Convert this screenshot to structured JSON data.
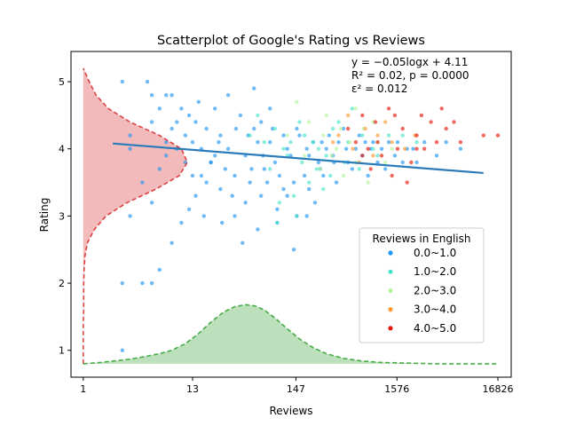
{
  "chart_data": {
    "type": "scatter",
    "title": "Scatterplot of Google's Rating vs Reviews",
    "xlabel": "Reviews",
    "ylabel": "Rating",
    "x_scale": "log",
    "xlim": [
      0.75,
      23000
    ],
    "ylim": [
      0.6,
      5.45
    ],
    "x_ticks": [
      1,
      13,
      147,
      1576,
      16826
    ],
    "x_tick_labels": [
      "1",
      "13",
      "147",
      "1576",
      "16826"
    ],
    "y_ticks": [
      1,
      2,
      3,
      4,
      5
    ],
    "y_tick_labels": [
      "1",
      "2",
      "3",
      "4",
      "5"
    ],
    "grid": false,
    "annotation": {
      "line1": "y = −0.05logx + 4.11",
      "line2": "R² = 0.02, p = 0.0000",
      "line3": "ε² = 0.012",
      "placement": "top-right"
    },
    "fit_line": {
      "label": "y = -0.05log x + 4.11",
      "x": [
        2,
        12000
      ],
      "y": [
        4.08,
        3.64
      ],
      "color": "#2b7bba"
    },
    "legend": {
      "title": "Reviews in English",
      "placement": "center-right",
      "entries": [
        {
          "label": "0.0~1.0",
          "color": "#2196f3"
        },
        {
          "label": "1.0~2.0",
          "color": "#4de3c8"
        },
        {
          "label": "2.0~3.0",
          "color": "#b7f59a"
        },
        {
          "label": "3.0~4.0",
          "color": "#ff9933"
        },
        {
          "label": "4.0~5.0",
          "color": "#e6190a"
        }
      ]
    },
    "rating_density": {
      "color": "#d62728",
      "rating": [
        0.8,
        1.0,
        1.2,
        1.4,
        1.6,
        1.8,
        2.0,
        2.2,
        2.4,
        2.6,
        2.8,
        3.0,
        3.2,
        3.4,
        3.6,
        3.8,
        4.0,
        4.2,
        4.4,
        4.6,
        4.8,
        5.0,
        5.2
      ],
      "reviews": [
        1.0,
        1.0,
        1.0,
        1.0,
        1.01,
        1.01,
        1.01,
        1.02,
        1.04,
        1.1,
        1.3,
        1.7,
        2.8,
        5.5,
        9.5,
        11.5,
        10.0,
        6.0,
        3.0,
        1.8,
        1.35,
        1.15,
        1.0
      ]
    },
    "reviews_density": {
      "color": "#2ca02c",
      "reviews": [
        1,
        1.5,
        2,
        3,
        4,
        6,
        8,
        11,
        15,
        20,
        27,
        35,
        45,
        57,
        70,
        90,
        120,
        160,
        220,
        300,
        450,
        700,
        1100,
        2000,
        4000,
        8000,
        16826
      ],
      "rating": [
        0.8,
        0.82,
        0.84,
        0.87,
        0.9,
        0.95,
        1.0,
        1.1,
        1.25,
        1.42,
        1.57,
        1.65,
        1.68,
        1.66,
        1.6,
        1.48,
        1.32,
        1.17,
        1.04,
        0.95,
        0.88,
        0.84,
        0.82,
        0.81,
        0.8,
        0.8,
        0.8
      ]
    },
    "series": [
      {
        "name": "0.0~1.0",
        "color": "#2196f3",
        "points": [
          [
            2.5,
            1.0
          ],
          [
            2.5,
            5.0
          ],
          [
            4.5,
            5.0
          ],
          [
            5,
            4.8
          ],
          [
            7,
            4.8
          ],
          [
            8,
            4.8
          ],
          [
            6,
            4.6
          ],
          [
            10,
            4.6
          ],
          [
            12,
            4.5
          ],
          [
            5,
            4.4
          ],
          [
            8,
            4.3
          ],
          [
            14,
            4.4
          ],
          [
            18,
            4.3
          ],
          [
            25,
            4.2
          ],
          [
            40,
            4.5
          ],
          [
            55,
            4.3
          ],
          [
            80,
            4.1
          ],
          [
            120,
            4.0
          ],
          [
            160,
            4.2
          ],
          [
            220,
            4.1
          ],
          [
            300,
            4.0
          ],
          [
            400,
            4.1
          ],
          [
            600,
            4.0
          ],
          [
            900,
            4.1
          ],
          [
            1300,
            4.1
          ],
          [
            2000,
            4.0
          ],
          [
            3000,
            4.1
          ],
          [
            5000,
            4.1
          ],
          [
            30,
            4.0
          ],
          [
            45,
            3.9
          ],
          [
            60,
            4.1
          ],
          [
            90,
            3.8
          ],
          [
            130,
            3.9
          ],
          [
            190,
            4.0
          ],
          [
            260,
            3.7
          ],
          [
            350,
            3.9
          ],
          [
            500,
            3.8
          ],
          [
            700,
            3.9
          ],
          [
            1000,
            3.8
          ],
          [
            1500,
            3.9
          ],
          [
            2500,
            3.8
          ],
          [
            20,
            3.8
          ],
          [
            28,
            3.7
          ],
          [
            35,
            3.6
          ],
          [
            50,
            3.5
          ],
          [
            70,
            3.7
          ],
          [
            100,
            3.6
          ],
          [
            140,
            3.5
          ],
          [
            200,
            3.4
          ],
          [
            280,
            3.6
          ],
          [
            380,
            3.5
          ],
          [
            550,
            3.7
          ],
          [
            800,
            3.6
          ],
          [
            25,
            3.4
          ],
          [
            33,
            3.3
          ],
          [
            45,
            3.2
          ],
          [
            65,
            3.3
          ],
          [
            95,
            3.1
          ],
          [
            110,
            3.4
          ],
          [
            150,
            3.0
          ],
          [
            230,
            3.2
          ],
          [
            18,
            3.5
          ],
          [
            22,
            3.9
          ],
          [
            16,
            4.0
          ],
          [
            13,
            4.1
          ],
          [
            11,
            4.2
          ],
          [
            9,
            4.0
          ],
          [
            7,
            3.9
          ],
          [
            6,
            3.7
          ],
          [
            4,
            3.5
          ],
          [
            5,
            3.2
          ],
          [
            3,
            3.0
          ],
          [
            2.5,
            2.0
          ],
          [
            4,
            2.0
          ],
          [
            5,
            2.0
          ],
          [
            6,
            2.2
          ],
          [
            8,
            2.6
          ],
          [
            10,
            2.9
          ],
          [
            12,
            3.1
          ],
          [
            14,
            3.3
          ],
          [
            16,
            3.6
          ],
          [
            20,
            3.8
          ],
          [
            24,
            4.1
          ],
          [
            36,
            4.3
          ],
          [
            48,
            4.2
          ],
          [
            65,
            4.4
          ],
          [
            85,
            4.3
          ],
          [
            75,
            3.5
          ],
          [
            120,
            3.3
          ],
          [
            180,
            3.6
          ],
          [
            250,
            3.8
          ],
          [
            320,
            4.2
          ],
          [
            450,
            4.3
          ],
          [
            650,
            4.2
          ],
          [
            850,
            4.0
          ],
          [
            1200,
            3.7
          ],
          [
            1800,
            3.8
          ],
          [
            4000,
            3.9
          ],
          [
            7000,
            4.0
          ],
          [
            15,
            4.7
          ],
          [
            22,
            4.6
          ],
          [
            30,
            4.8
          ],
          [
            55,
            4.9
          ],
          [
            80,
            4.6
          ],
          [
            42,
            2.6
          ],
          [
            60,
            2.8
          ],
          [
            95,
            2.9
          ],
          [
            140,
            2.5
          ],
          [
            190,
            3.0
          ],
          [
            3,
            4.0
          ],
          [
            3,
            4.2
          ],
          [
            7,
            4.1
          ],
          [
            9,
            4.4
          ],
          [
            11,
            3.8
          ],
          [
            13,
            3.6
          ],
          [
            17,
            3.0
          ],
          [
            26,
            2.9
          ],
          [
            35,
            3.0
          ],
          [
            52,
            3.7
          ],
          [
            68,
            3.9
          ],
          [
            110,
            4.2
          ],
          [
            150,
            4.3
          ],
          [
            200,
            3.9
          ],
          [
            270,
            4.1
          ],
          [
            360,
            3.8
          ],
          [
            480,
            4.0
          ],
          [
            750,
            4.1
          ],
          [
            1100,
            4.0
          ],
          [
            1600,
            4.1
          ],
          [
            2300,
            4.0
          ]
        ]
      },
      {
        "name": "1.0~2.0",
        "color": "#4de3c8",
        "points": [
          [
            60,
            4.5
          ],
          [
            90,
            4.3
          ],
          [
            130,
            4.1
          ],
          [
            180,
            4.2
          ],
          [
            250,
            4.0
          ],
          [
            350,
            4.3
          ],
          [
            500,
            4.1
          ],
          [
            700,
            4.2
          ],
          [
            1000,
            3.9
          ],
          [
            120,
            3.9
          ],
          [
            170,
            3.8
          ],
          [
            240,
            3.7
          ],
          [
            330,
            3.6
          ],
          [
            460,
            3.8
          ],
          [
            650,
            3.7
          ],
          [
            900,
            4.0
          ],
          [
            1300,
            4.2
          ],
          [
            200,
            3.5
          ],
          [
            280,
            3.4
          ],
          [
            80,
            3.7
          ],
          [
            100,
            3.2
          ],
          [
            150,
            3.0
          ],
          [
            400,
            4.4
          ],
          [
            550,
            4.6
          ],
          [
            300,
            3.9
          ],
          [
            220,
            4.1
          ],
          [
            160,
            4.4
          ],
          [
            110,
            4.0
          ],
          [
            70,
            4.1
          ],
          [
            1800,
            4.2
          ],
          [
            2500,
            4.1
          ],
          [
            50,
            4.2
          ],
          [
            95,
            2.9
          ],
          [
            140,
            3.3
          ]
        ]
      },
      {
        "name": "2.0~3.0",
        "color": "#b7f59a",
        "points": [
          [
            150,
            4.7
          ],
          [
            200,
            4.4
          ],
          [
            280,
            4.2
          ],
          [
            380,
            4.0
          ],
          [
            520,
            4.1
          ],
          [
            720,
            4.3
          ],
          [
            1000,
            4.1
          ],
          [
            1400,
            4.0
          ],
          [
            260,
            3.7
          ],
          [
            340,
            3.9
          ],
          [
            450,
            3.6
          ],
          [
            600,
            3.8
          ],
          [
            800,
            3.5
          ],
          [
            120,
            4.2
          ],
          [
            180,
            3.9
          ],
          [
            900,
            4.4
          ],
          [
            1200,
            3.8
          ],
          [
            600,
            4.6
          ],
          [
            300,
            4.5
          ],
          [
            420,
            4.3
          ]
        ]
      },
      {
        "name": "3.0~4.0",
        "color": "#ff9933",
        "points": [
          [
            400,
            4.2
          ],
          [
            560,
            4.0
          ],
          [
            750,
            4.3
          ],
          [
            1000,
            4.2
          ],
          [
            1400,
            4.1
          ],
          [
            1900,
            4.0
          ],
          [
            650,
            3.8
          ],
          [
            900,
            3.9
          ],
          [
            1200,
            4.4
          ],
          [
            500,
            4.5
          ],
          [
            350,
            4.1
          ],
          [
            2400,
            4.2
          ]
        ]
      },
      {
        "name": "4.0~5.0",
        "color": "#e6190a",
        "points": [
          [
            500,
            4.3
          ],
          [
            700,
            4.5
          ],
          [
            950,
            4.4
          ],
          [
            1300,
            4.6
          ],
          [
            1800,
            4.3
          ],
          [
            2500,
            4.2
          ],
          [
            3500,
            4.4
          ],
          [
            5000,
            4.3
          ],
          [
            7000,
            4.1
          ],
          [
            12000,
            4.2
          ],
          [
            16826,
            4.2
          ],
          [
            800,
            4.0
          ],
          [
            1100,
            3.9
          ],
          [
            1600,
            4.0
          ],
          [
            2200,
            3.8
          ],
          [
            3000,
            4.0
          ],
          [
            4000,
            4.1
          ],
          [
            600,
            4.1
          ],
          [
            1500,
            4.5
          ],
          [
            2800,
            4.5
          ],
          [
            4500,
            4.6
          ],
          [
            6000,
            4.4
          ],
          [
            850,
            3.7
          ],
          [
            1400,
            3.6
          ],
          [
            2000,
            3.5
          ],
          [
            1000,
            4.1
          ],
          [
            700,
            3.9
          ],
          [
            2500,
            4.0
          ]
        ]
      }
    ]
  }
}
